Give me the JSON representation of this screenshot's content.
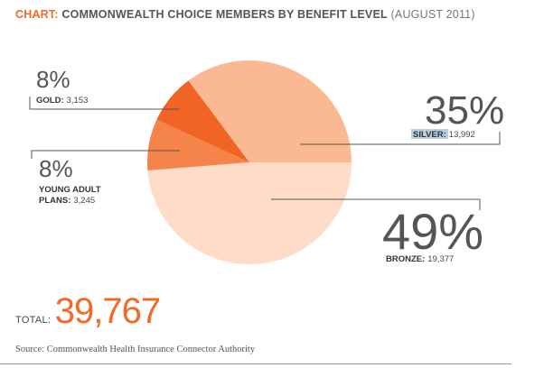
{
  "header": {
    "prefix": "CHART:",
    "title": "COMMONWEALTH CHOICE MEMBERS BY BENEFIT LEVEL",
    "subtitle": "(AUGUST 2011)"
  },
  "chart_data": {
    "type": "pie",
    "slices": [
      {
        "name": "SILVER",
        "percent_label": "35%",
        "count": "13,992",
        "value": 13992,
        "color": "#fbb993"
      },
      {
        "name": "BRONZE",
        "percent_label": "49%",
        "count": "19,377",
        "value": 19377,
        "color": "#fedcc7"
      },
      {
        "name": "YOUNG ADULT PLANS",
        "percent_label": "8%",
        "count": "3,245",
        "value": 3245,
        "color": "#f4844a"
      },
      {
        "name": "GOLD",
        "percent_label": "8%",
        "count": "3,153",
        "value": 3153,
        "color": "#f26424"
      }
    ]
  },
  "labels": {
    "gold": {
      "pct": "8%",
      "name": "GOLD:",
      "count": "3,153"
    },
    "young": {
      "pct": "8%",
      "name_line1": "YOUNG ADULT",
      "name_line2": "PLANS:",
      "count": "3,245"
    },
    "silver": {
      "pct": "35%",
      "name": "SILVER:",
      "count": "13,992"
    },
    "bronze": {
      "pct": "49%",
      "name": "BRONZE:",
      "count": "19,377"
    }
  },
  "total": {
    "label": "TOTAL:",
    "value": "39,767"
  },
  "source": "Source: Commonwealth Health Insurance Connector Authority"
}
